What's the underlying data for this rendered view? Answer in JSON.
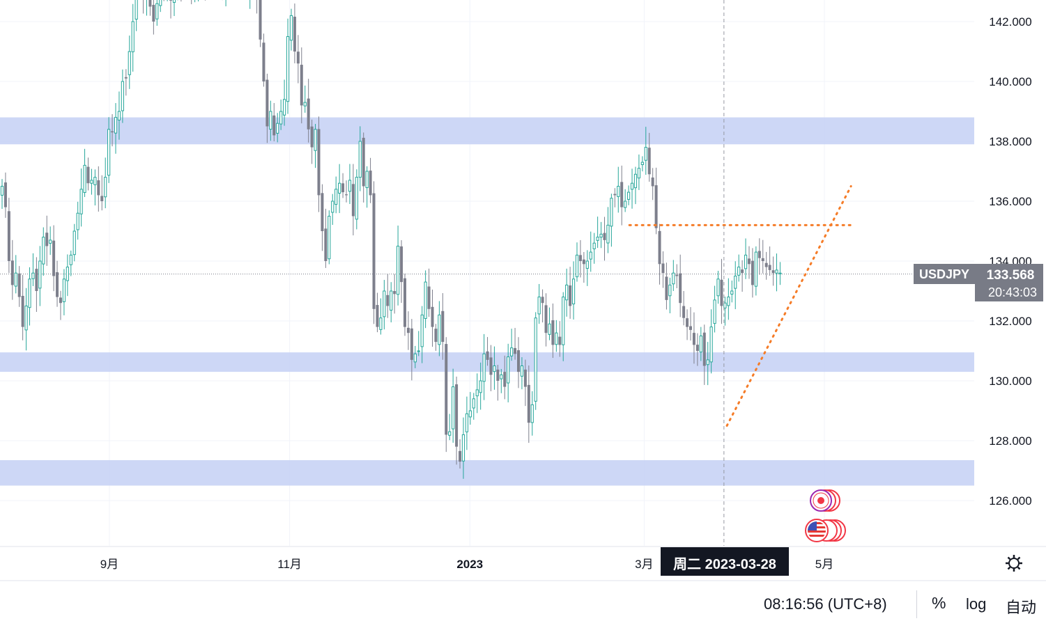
{
  "chart_data": {
    "type": "candlestick",
    "symbol": "USDJPY",
    "last_price": 133.568,
    "countdown": "20:43:03",
    "last_price_text": "133.568",
    "ylim": [
      124.6,
      143.2
    ],
    "y_ticks": [
      "126.000",
      "128.000",
      "130.000",
      "132.000",
      "134.000",
      "136.000",
      "138.000",
      "140.000",
      "142.000"
    ],
    "x_ticks": [
      {
        "label": "9月",
        "date": "2022-09-01",
        "bold": false
      },
      {
        "label": "11月",
        "date": "2022-11-01",
        "bold": false
      },
      {
        "label": "2023",
        "date": "2023-01-01",
        "bold": true
      },
      {
        "label": "3月",
        "date": "2023-03-01",
        "bold": false
      },
      {
        "label": "5月",
        "date": "2023-05-01",
        "bold": false
      }
    ],
    "crosshair": {
      "date": "2023-03-28",
      "label": "周二 2023-03-28"
    },
    "support_resistance_zones": [
      {
        "from": 137.9,
        "to": 138.8
      },
      {
        "from": 130.3,
        "to": 130.95
      },
      {
        "from": 126.5,
        "to": 127.35
      }
    ],
    "trendlines": [
      {
        "from_date": "2023-02-24",
        "from_value": 135.2,
        "to_date": "2023-05-10",
        "to_value": 135.2
      },
      {
        "from_date": "2023-03-29",
        "from_value": 128.5,
        "to_date": "2023-05-10",
        "to_value": 136.5
      }
    ],
    "closes": [
      136.5,
      135.8,
      134.0,
      133.2,
      133.6,
      132.8,
      131.8,
      132.5,
      133.4,
      133.6,
      133.0,
      134.0,
      134.8,
      134.5,
      134.7,
      133.5,
      132.8,
      132.6,
      133.4,
      133.8,
      134.2,
      135.0,
      135.6,
      136.4,
      137.2,
      136.6,
      136.7,
      136.8,
      136.2,
      136.0,
      136.8,
      138.4,
      138.3,
      138.8,
      139.0,
      140.0,
      140.1,
      141.0,
      142.0,
      143.0,
      143.2,
      142.8,
      143.1,
      142.5,
      142.0,
      142.6,
      143.2,
      143.0,
      142.9,
      142.7,
      143.2,
      143.5,
      143.3,
      143.4,
      143.1,
      142.9,
      143.0,
      143.4,
      143.5,
      143.3,
      143.1,
      143.4,
      143.5,
      143.3,
      143.0,
      143.3,
      143.5,
      143.4,
      143.2,
      143.5,
      143.3,
      143.0,
      143.2,
      143.4,
      142.8,
      141.4,
      140.0,
      138.5,
      139.0,
      138.2,
      138.6,
      139.0,
      139.4,
      141.5,
      142.2,
      141.0,
      140.6,
      139.2,
      139.3,
      138.4,
      137.8,
      138.4,
      136.2,
      135.0,
      134.0,
      135.5,
      136.0,
      136.4,
      136.6,
      136.3,
      136.2,
      136.7,
      135.5,
      136.8,
      138.0,
      136.5,
      137.0,
      136.2,
      132.4,
      131.8,
      132.1,
      133.0,
      132.5,
      133.0,
      132.9,
      134.5,
      133.3,
      131.8,
      131.6,
      130.7,
      130.9,
      131.0,
      132.2,
      133.3,
      132.4,
      131.8,
      131.3,
      132.2,
      131.3,
      128.2,
      128.3,
      129.8,
      127.8,
      127.3,
      128.2,
      128.9,
      129.0,
      129.4,
      129.7,
      130.0,
      130.9,
      130.7,
      130.2,
      130.5,
      130.0,
      130.2,
      129.8,
      130.8,
      131.1,
      130.9,
      130.3,
      130.5,
      129.8,
      128.6,
      129.2,
      132.1,
      132.8,
      132.6,
      131.6,
      131.9,
      131.2,
      131.6,
      131.2,
      132.8,
      133.2,
      132.5,
      133.4,
      134.2,
      134.0,
      133.9,
      134.0,
      134.3,
      134.6,
      134.8,
      134.9,
      134.7,
      135.2,
      136.1,
      136.2,
      136.5,
      135.8,
      136.0,
      136.3,
      136.6,
      136.9,
      137.1,
      137.3,
      137.8,
      136.9,
      136.5,
      135.1,
      133.9,
      133.6,
      132.7,
      133.2,
      133.6,
      133.5,
      132.6,
      132.1,
      131.8,
      131.7,
      131.2,
      131.0,
      131.5,
      130.5,
      130.7,
      131.8,
      132.7,
      133.4,
      132.5,
      132.6,
      132.8,
      133.0,
      133.5,
      133.8,
      133.6,
      134.2,
      133.9,
      133.2,
      134.3,
      134.1,
      134.0,
      133.8,
      133.7,
      133.6,
      133.7,
      133.6
    ]
  },
  "events": [
    {
      "name": "jp-event-flag",
      "country": "JP"
    },
    {
      "name": "us-event-flag",
      "country": "US"
    }
  ],
  "status_bar": {
    "clock": "08:16:56 (UTC+8)",
    "percent": "%",
    "log": "log",
    "auto": "自动"
  },
  "colors": {
    "up": "#26a69a",
    "down": "#7d7f8c",
    "zone": "#c8d3f5",
    "trendline": "#f57c28",
    "price_tag": "#787b86",
    "crosshair_tag": "#131722"
  }
}
